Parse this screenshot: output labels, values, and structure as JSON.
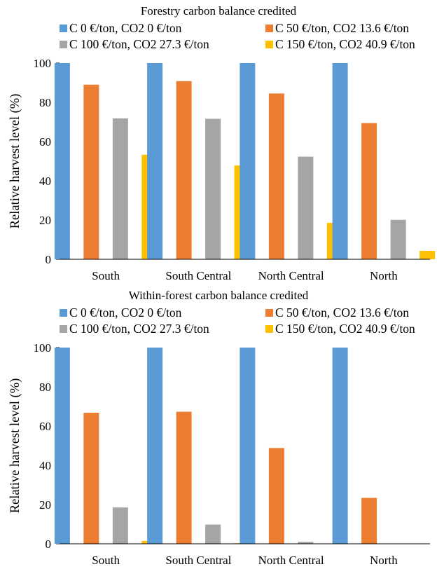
{
  "chart_data": [
    {
      "type": "bar",
      "title": "Forestry carbon balance credited",
      "xlabel": "",
      "ylabel": "Relative harvest level (%)",
      "ylim": [
        0,
        100
      ],
      "yticks": [
        "0",
        "20",
        "40",
        "60",
        "80",
        "100"
      ],
      "categories": [
        "South",
        "South Central",
        "North Central",
        "North"
      ],
      "legend_position": "top",
      "grid": false,
      "series": [
        {
          "name": "C 0 €/ton, CO2 0 €/ton",
          "color": "#5B9BD5",
          "values": [
            100,
            100,
            100,
            100
          ]
        },
        {
          "name": "C 50 €/ton, CO2 13.6 €/ton",
          "color": "#ED7D31",
          "values": [
            89,
            90.8,
            84.5,
            69.4
          ]
        },
        {
          "name": "C 100 €/ton, CO2 27.3 €/ton",
          "color": "#A5A5A5",
          "values": [
            71.8,
            71.6,
            52.3,
            20.1
          ]
        },
        {
          "name": "C 150 €/ton, CO2 40.9 €/ton",
          "color": "#FFC000",
          "values": [
            53.3,
            47.8,
            18.6,
            4.3
          ]
        }
      ]
    },
    {
      "type": "bar",
      "title": "Within-forest carbon balance credited",
      "xlabel": "",
      "ylabel": "Relative harvest level (%)",
      "ylim": [
        0,
        100
      ],
      "yticks": [
        "0",
        "20",
        "40",
        "60",
        "80",
        "100"
      ],
      "categories": [
        "South",
        "South Central",
        "North Central",
        "North"
      ],
      "legend_position": "top",
      "grid": false,
      "series": [
        {
          "name": "C 0 €/ton, CO2 0 €/ton",
          "color": "#5B9BD5",
          "values": [
            100,
            100,
            100,
            100
          ]
        },
        {
          "name": "C 50 €/ton, CO2 13.6 €/ton",
          "color": "#ED7D31",
          "values": [
            66.8,
            67.3,
            48.8,
            23.4
          ]
        },
        {
          "name": "C 100 €/ton, CO2 27.3 €/ton",
          "color": "#A5A5A5",
          "values": [
            18.5,
            9.8,
            1,
            0
          ]
        },
        {
          "name": "C 150 €/ton, CO2 40.9 €/ton",
          "color": "#FFC000",
          "values": [
            1.5,
            0.3,
            0,
            0
          ]
        }
      ]
    }
  ]
}
